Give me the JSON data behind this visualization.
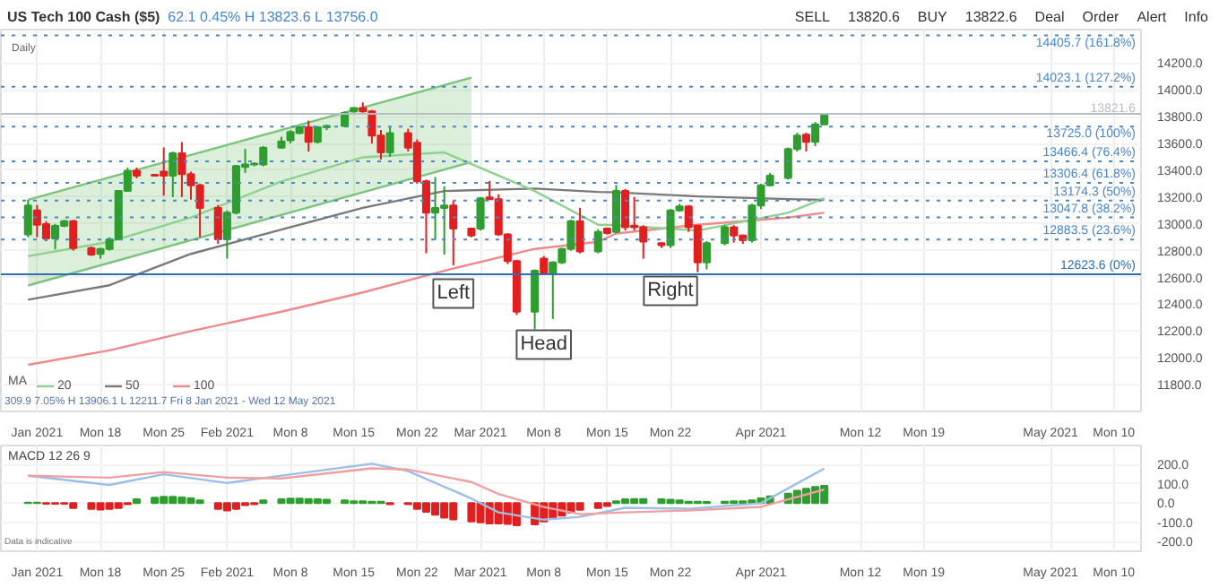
{
  "chart_data": [
    {
      "type": "candlestick",
      "title": "US Tech 100 Cash ($5)",
      "subtitle": "62.1 0.45% H 13823.6 L 13756.0",
      "x": [
        "2021-01-10",
        "2021-01-11",
        "2021-01-12",
        "2021-01-13",
        "2021-01-14",
        "2021-01-15",
        "2021-01-17",
        "2021-01-18",
        "2021-01-19",
        "2021-01-20",
        "2021-01-21",
        "2021-01-22",
        "2021-01-24",
        "2021-01-25",
        "2021-01-26",
        "2021-01-27",
        "2021-01-28",
        "2021-01-29",
        "2021-01-31",
        "2021-02-01",
        "2021-02-02",
        "2021-02-03",
        "2021-02-04",
        "2021-02-05",
        "2021-02-07",
        "2021-02-08",
        "2021-02-09",
        "2021-02-10",
        "2021-02-11",
        "2021-02-12",
        "2021-02-14",
        "2021-02-15",
        "2021-02-16",
        "2021-02-17",
        "2021-02-18",
        "2021-02-19",
        "2021-02-21",
        "2021-02-22",
        "2021-02-23",
        "2021-02-24",
        "2021-02-25",
        "2021-02-26",
        "2021-02-28",
        "2021-03-01",
        "2021-03-02",
        "2021-03-03",
        "2021-03-04",
        "2021-03-05",
        "2021-03-07",
        "2021-03-08",
        "2021-03-09",
        "2021-03-10",
        "2021-03-11",
        "2021-03-12",
        "2021-03-14",
        "2021-03-15",
        "2021-03-16",
        "2021-03-17",
        "2021-03-18",
        "2021-03-19",
        "2021-03-21",
        "2021-03-22",
        "2021-03-23",
        "2021-03-24",
        "2021-03-25",
        "2021-03-26",
        "2021-03-28",
        "2021-03-29",
        "2021-03-30",
        "2021-03-31",
        "2021-04-01",
        "2021-04-02",
        "2021-04-04",
        "2021-04-05",
        "2021-04-06",
        "2021-04-07",
        "2021-04-08"
      ],
      "ohlc": [
        [
          12921,
          13180,
          12900,
          13137
        ],
        [
          13101,
          13140,
          12900,
          12993
        ],
        [
          12998,
          13020,
          12870,
          12892
        ],
        [
          12892,
          13000,
          12810,
          12985
        ],
        [
          12985,
          13030,
          12975,
          13020
        ],
        [
          13020,
          13030,
          12800,
          12820
        ],
        [
          12820,
          12830,
          12760,
          12770
        ],
        [
          12776,
          12820,
          12740,
          12812
        ],
        [
          12812,
          12900,
          12800,
          12885
        ],
        [
          12885,
          13250,
          12880,
          13245
        ],
        [
          13245,
          13420,
          13240,
          13396
        ],
        [
          13396,
          13420,
          13340,
          13360
        ],
        [
          13367,
          13370,
          13355,
          13360
        ],
        [
          13389,
          13570,
          13210,
          13360
        ],
        [
          13360,
          13540,
          13200,
          13526
        ],
        [
          13526,
          13610,
          13200,
          13371
        ],
        [
          13371,
          13390,
          13180,
          13288
        ],
        [
          13288,
          13300,
          12900,
          13119
        ],
        [
          13119,
          13140,
          12850,
          12885
        ],
        [
          12885,
          13100,
          12740,
          13083
        ],
        [
          13083,
          13440,
          13070,
          13432
        ],
        [
          13425,
          13560,
          13380,
          13443
        ],
        [
          13443,
          13460,
          13430,
          13450
        ],
        [
          13443,
          13580,
          13430,
          13569
        ],
        [
          13569,
          13650,
          13560,
          13616
        ],
        [
          13623,
          13700,
          13600,
          13685
        ],
        [
          13677,
          13730,
          13670,
          13720
        ],
        [
          13720,
          13770,
          13540,
          13612
        ],
        [
          13612,
          13730,
          13600,
          13720
        ],
        [
          13720,
          13740,
          13700,
          13731
        ],
        [
          13731,
          13840,
          13720,
          13828
        ],
        [
          13840,
          13870,
          13830,
          13865
        ],
        [
          13865,
          13906.1,
          13830,
          13840
        ],
        [
          13840,
          13850,
          13600,
          13659
        ],
        [
          13659,
          13700,
          13480,
          13533
        ],
        [
          13533,
          13720,
          13500,
          13677
        ],
        [
          13677,
          13710,
          13540,
          13569
        ],
        [
          13605,
          13630,
          13300,
          13317
        ],
        [
          13317,
          13330,
          12780,
          13083
        ],
        [
          13083,
          13350,
          12880,
          13119
        ],
        [
          13119,
          13280,
          12770,
          13137
        ],
        [
          13137,
          13170,
          12690,
          12964
        ],
        [
          12964,
          12970,
          12900,
          12913
        ],
        [
          12964,
          13200,
          12950,
          13191
        ],
        [
          13198,
          13320,
          13180,
          13184
        ],
        [
          13184,
          13220,
          12910,
          12921
        ],
        [
          12921,
          12930,
          12700,
          12722
        ],
        [
          12722,
          12730,
          12320,
          12344
        ],
        [
          12344,
          12660,
          12211.7,
          12650
        ],
        [
          12740,
          12760,
          12620,
          12632
        ],
        [
          12632,
          12720,
          12290,
          12712
        ],
        [
          12712,
          12820,
          12700,
          12813
        ],
        [
          12813,
          13030,
          12800,
          13020
        ],
        [
          13020,
          13120,
          12780,
          12795
        ],
        [
          12795,
          12960,
          12780,
          12939
        ],
        [
          12964,
          12970,
          12920,
          12932
        ],
        [
          12939,
          13290,
          12930,
          13245
        ],
        [
          13245,
          13260,
          12950,
          12975
        ],
        [
          12986,
          13200,
          12950,
          12975
        ],
        [
          12975,
          12990,
          12740,
          12867
        ],
        [
          12856,
          12860,
          12820,
          12841
        ],
        [
          12841,
          13110,
          12820,
          13101
        ],
        [
          13101,
          13150,
          13090,
          13130
        ],
        [
          13130,
          13140,
          12940,
          12975
        ],
        [
          12986,
          12990,
          12640,
          12712
        ],
        [
          12712,
          12870,
          12660,
          12856
        ],
        [
          12856,
          12990,
          12840,
          12975
        ],
        [
          12975,
          12990,
          12860,
          12913
        ],
        [
          12913,
          12920,
          12850,
          12877
        ],
        [
          12877,
          13150,
          12860,
          13137
        ],
        [
          13137,
          13300,
          13110,
          13288
        ],
        [
          13288,
          13380,
          13280,
          13360
        ],
        [
          13342,
          13570,
          13330,
          13558
        ],
        [
          13558,
          13680,
          13540,
          13659
        ],
        [
          13666,
          13680,
          13540,
          13612
        ],
        [
          13612,
          13760,
          13580,
          13742
        ],
        [
          13742,
          13825,
          13740,
          13821.6
        ]
      ],
      "series": [
        {
          "type": "line",
          "color": "#7cc47c",
          "x": [
            "2021-01-10",
            "2021-02-28"
          ],
          "values": [
            13180,
            14091
          ],
          "lower": [
            12540,
            13461
          ],
          "upper": [
            13180,
            14091
          ]
        },
        {
          "type": "line",
          "color": "#7cc47c",
          "x": [
            "2021-01-10",
            "2021-02-28"
          ],
          "values": [
            12540,
            13461
          ]
        },
        {
          "type": "line",
          "name": "100",
          "color": "#f08a8a",
          "x": [
            "2021-01-10",
            "2021-01-19",
            "2021-01-28",
            "2021-02-07",
            "2021-02-16",
            "2021-02-25",
            "2021-03-07",
            "2021-03-14",
            "2021-03-16",
            "2021-03-25",
            "2021-04-04",
            "2021-04-08"
          ],
          "values": [
            11948,
            12056,
            12200,
            12344,
            12488,
            12650,
            12813,
            12866,
            12928,
            12993,
            13047,
            13083
          ]
        },
        {
          "type": "line",
          "name": "50",
          "color": "#7a7a7a",
          "x": [
            "2021-01-10",
            "2021-01-19",
            "2021-01-28",
            "2021-02-07",
            "2021-02-16",
            "2021-02-25",
            "2021-03-07",
            "2021-03-14",
            "2021-03-16",
            "2021-03-25",
            "2021-04-04",
            "2021-04-08"
          ],
          "values": [
            12434,
            12542,
            12776,
            12957,
            13119,
            13245,
            13263,
            13238,
            13235,
            13205,
            13185,
            13180
          ]
        },
        {
          "type": "line",
          "name": "20",
          "color": "#8fd18f",
          "x": [
            "2021-01-10",
            "2021-01-19",
            "2021-01-28",
            "2021-02-07",
            "2021-02-16",
            "2021-02-25",
            "2021-03-07",
            "2021-03-14",
            "2021-03-16",
            "2021-03-25",
            "2021-04-04",
            "2021-04-08"
          ],
          "values": [
            12758,
            12866,
            13047,
            13317,
            13497,
            13533,
            13245,
            12993,
            12990,
            12950,
            13083,
            13191
          ]
        }
      ],
      "legend": "bottom left",
      "legend_title": "MA",
      "xlim": [
        "2021-01-07",
        "2021-05-13"
      ],
      "ylim": [
        11600,
        14450
      ],
      "xticks": [
        {
          "value": "2021-01-11",
          "label": "Jan 2021"
        },
        {
          "value": "2021-01-18",
          "label": "Mon 18"
        },
        {
          "value": "2021-01-25",
          "label": "Mon 25"
        },
        {
          "value": "2021-02-01",
          "label": "Feb 2021"
        },
        {
          "value": "2021-02-08",
          "label": "Mon 8"
        },
        {
          "value": "2021-02-15",
          "label": "Mon 15"
        },
        {
          "value": "2021-02-22",
          "label": "Mon 22"
        },
        {
          "value": "2021-03-01",
          "label": "Mar 2021"
        },
        {
          "value": "2021-03-08",
          "label": "Mon 8"
        },
        {
          "value": "2021-03-15",
          "label": "Mon 15"
        },
        {
          "value": "2021-03-22",
          "label": "Mon 22"
        },
        {
          "value": "2021-04-01",
          "label": "Apr 2021"
        },
        {
          "value": "2021-04-12",
          "label": "Mon 12"
        },
        {
          "value": "2021-04-19",
          "label": "Mon 19"
        },
        {
          "value": "2021-05-03",
          "label": "May 2021"
        },
        {
          "value": "2021-05-10",
          "label": "Mon 10"
        }
      ],
      "yticks": [
        {
          "value": 11800,
          "label": "11800.0"
        },
        {
          "value": 12000,
          "label": "12000.0"
        },
        {
          "value": 12200,
          "label": "12200.0"
        },
        {
          "value": 12400,
          "label": "12400.0"
        },
        {
          "value": 12600,
          "label": "12600.0"
        },
        {
          "value": 12800,
          "label": "12800.0"
        },
        {
          "value": 13000,
          "label": "13000.0"
        },
        {
          "value": 13200,
          "label": "13200.0"
        },
        {
          "value": 13400,
          "label": "13400.0"
        },
        {
          "value": 13600,
          "label": "13600.0"
        },
        {
          "value": 13800,
          "label": "13800.0"
        },
        {
          "value": 14000,
          "label": "14000.0"
        },
        {
          "value": 14200,
          "label": "14200.0"
        }
      ],
      "grid": true,
      "ref_lines": [
        {
          "axis": "y",
          "value": 13821.6,
          "label": "13821.6",
          "color": "#b8bcc4",
          "line_style": "solid"
        },
        {
          "axis": "y",
          "value": 14405.7,
          "label": "14405.7 (161.8%)",
          "color": "#4a86c8",
          "line_style": "dotted"
        },
        {
          "axis": "y",
          "value": 14023.1,
          "label": "14023.1 (127.2%)",
          "color": "#4a86c8",
          "line_style": "dotted"
        },
        {
          "axis": "y",
          "value": 13725.0,
          "label": "13725.0 (100%)",
          "color": "#4a86c8",
          "line_style": "dotted"
        },
        {
          "axis": "y",
          "value": 13466.4,
          "label": "13466.4 (76.4%)",
          "color": "#4a86c8",
          "line_style": "dotted"
        },
        {
          "axis": "y",
          "value": 13306.4,
          "label": "13306.4 (61.8%)",
          "color": "#4a86c8",
          "line_style": "dotted"
        },
        {
          "axis": "y",
          "value": 13174.3,
          "label": "13174.3 (50%)",
          "color": "#4a86c8",
          "line_style": "dotted"
        },
        {
          "axis": "y",
          "value": 13047.8,
          "label": "13047.8 (38.2%)",
          "color": "#4a86c8",
          "line_style": "dotted"
        },
        {
          "axis": "y",
          "value": 12883.5,
          "label": "12883.5 (23.6%)",
          "color": "#4a86c8",
          "line_style": "dotted"
        },
        {
          "axis": "y",
          "value": 12623.6,
          "label": "12623.6 (0%)",
          "color": "#2f6db5",
          "line_style": "solid"
        }
      ],
      "annotations": [
        "Daily",
        "SELL",
        "13820.6",
        "BUY",
        "13822.6",
        "Deal",
        "Order",
        "Alert",
        "Info",
        "309.9 7.05% H 13906.1 L 12211.7 Fri 8 Jan 2021 - Wed 12 May 2021",
        {
          "text": "Left",
          "x": "2021-02-26",
          "y": 12480
        },
        {
          "text": "Head",
          "x": "2021-03-08",
          "y": 12099
        },
        {
          "text": "Right",
          "x": "2021-03-22",
          "y": 12500
        }
      ]
    },
    {
      "type": "bar",
      "title": "MACD 12 26 9",
      "x": [
        "2021-01-10",
        "2021-01-11",
        "2021-01-12",
        "2021-01-13",
        "2021-01-14",
        "2021-01-15",
        "2021-01-17",
        "2021-01-18",
        "2021-01-19",
        "2021-01-20",
        "2021-01-21",
        "2021-01-22",
        "2021-01-24",
        "2021-01-25",
        "2021-01-26",
        "2021-01-27",
        "2021-01-28",
        "2021-01-29",
        "2021-01-31",
        "2021-02-01",
        "2021-02-02",
        "2021-02-03",
        "2021-02-04",
        "2021-02-05",
        "2021-02-07",
        "2021-02-08",
        "2021-02-09",
        "2021-02-10",
        "2021-02-11",
        "2021-02-12",
        "2021-02-14",
        "2021-02-15",
        "2021-02-16",
        "2021-02-17",
        "2021-02-18",
        "2021-02-19",
        "2021-02-21",
        "2021-02-22",
        "2021-02-23",
        "2021-02-24",
        "2021-02-25",
        "2021-02-26",
        "2021-02-28",
        "2021-03-01",
        "2021-03-02",
        "2021-03-03",
        "2021-03-04",
        "2021-03-05",
        "2021-03-07",
        "2021-03-08",
        "2021-03-09",
        "2021-03-10",
        "2021-03-11",
        "2021-03-12",
        "2021-03-14",
        "2021-03-15",
        "2021-03-16",
        "2021-03-17",
        "2021-03-18",
        "2021-03-19",
        "2021-03-21",
        "2021-03-22",
        "2021-03-23",
        "2021-03-24",
        "2021-03-25",
        "2021-03-26",
        "2021-03-28",
        "2021-03-29",
        "2021-03-30",
        "2021-03-31",
        "2021-04-01",
        "2021-04-02",
        "2021-04-04",
        "2021-04-05",
        "2021-04-06",
        "2021-04-07",
        "2021-04-08"
      ],
      "series": [
        {
          "colors": [
            "#2e9e2e",
            "#2e9e2e",
            "#e02020",
            "#e02020",
            "#e02020",
            "#e02020",
            "#e02020",
            "#e02020",
            "#e02020",
            "#e02020",
            "#e02020",
            "#2e9e2e",
            "#2e9e2e",
            "#2e9e2e",
            "#2e9e2e",
            "#2e9e2e",
            "#2e9e2e",
            "#2e9e2e",
            "#e02020",
            "#e02020",
            "#e02020",
            "#e02020",
            "#e02020",
            "#2e9e2e",
            "#2e9e2e",
            "#2e9e2e",
            "#2e9e2e",
            "#2e9e2e",
            "#2e9e2e",
            "#2e9e2e",
            "#2e9e2e",
            "#2e9e2e",
            "#2e9e2e",
            "#2e9e2e",
            "#2e9e2e",
            "#e02020",
            "#e02020",
            "#e02020",
            "#e02020",
            "#e02020",
            "#e02020",
            "#e02020",
            "#e02020",
            "#e02020",
            "#e02020",
            "#e02020",
            "#e02020",
            "#e02020",
            "#e02020",
            "#e02020",
            "#e02020",
            "#e02020",
            "#e02020",
            "#e02020",
            "#e02020",
            "#e02020",
            "#2e9e2e",
            "#2e9e2e",
            "#2e9e2e",
            "#2e9e2e",
            "#2e9e2e",
            "#2e9e2e",
            "#2e9e2e",
            "#2e9e2e",
            "#2e9e2e",
            "#2e9e2e",
            "#2e9e2e",
            "#2e9e2e",
            "#2e9e2e",
            "#2e9e2e",
            "#2e9e2e",
            "#2e9e2e",
            "#2e9e2e",
            "#2e9e2e",
            "#2e9e2e",
            "#2e9e2e",
            "#2e9e2e"
          ],
          "values": [
            3,
            3,
            -3,
            -3,
            -3,
            -25,
            -30,
            -33,
            -30,
            -25,
            -5,
            20,
            28,
            33,
            33,
            30,
            25,
            15,
            -30,
            -38,
            -30,
            -10,
            -5,
            15,
            20,
            24,
            24,
            22,
            20,
            18,
            15,
            10,
            10,
            8,
            8,
            -5,
            -5,
            -30,
            -45,
            -60,
            -75,
            -85,
            -95,
            -100,
            -105,
            -105,
            -108,
            -115,
            -110,
            -95,
            -80,
            -65,
            -50,
            -35,
            -25,
            -15,
            10,
            20,
            22,
            22,
            20,
            18,
            15,
            8,
            8,
            6,
            8,
            10,
            10,
            15,
            25,
            35,
            50,
            65,
            75,
            85,
            90
          ]
        },
        {
          "type": "line",
          "color": "#9bbfe8",
          "x": [
            "2021-01-10",
            "2021-01-19",
            "2021-01-25",
            "2021-02-01",
            "2021-02-07",
            "2021-02-17",
            "2021-02-21",
            "2021-02-28",
            "2021-03-03",
            "2021-03-08",
            "2021-03-12",
            "2021-03-17",
            "2021-03-24",
            "2021-04-01",
            "2021-04-08"
          ],
          "values": [
            143,
            95,
            150,
            105,
            143,
            205,
            167,
            24,
            -48,
            -86,
            -71,
            -24,
            -29,
            0,
            180
          ]
        },
        {
          "type": "line",
          "color": "#f0a0a0",
          "x": [
            "2021-01-10",
            "2021-01-19",
            "2021-01-25",
            "2021-02-01",
            "2021-02-07",
            "2021-02-17",
            "2021-02-21",
            "2021-02-28",
            "2021-03-03",
            "2021-03-08",
            "2021-03-12",
            "2021-03-17",
            "2021-03-24",
            "2021-04-01",
            "2021-04-08"
          ],
          "values": [
            143,
            133,
            162,
            133,
            129,
            181,
            175,
            110,
            48,
            -20,
            -57,
            -48,
            -38,
            -19,
            71
          ]
        }
      ],
      "xlim": [
        "2021-01-07",
        "2021-05-13"
      ],
      "ylim": [
        -250,
        300
      ],
      "xticks": [
        {
          "value": "2021-01-11",
          "label": "Jan 2021"
        },
        {
          "value": "2021-01-18",
          "label": "Mon 18"
        },
        {
          "value": "2021-01-25",
          "label": "Mon 25"
        },
        {
          "value": "2021-02-01",
          "label": "Feb 2021"
        },
        {
          "value": "2021-02-08",
          "label": "Mon 8"
        },
        {
          "value": "2021-02-15",
          "label": "Mon 15"
        },
        {
          "value": "2021-02-22",
          "label": "Mon 22"
        },
        {
          "value": "2021-03-01",
          "label": "Mar 2021"
        },
        {
          "value": "2021-03-08",
          "label": "Mon 8"
        },
        {
          "value": "2021-03-15",
          "label": "Mon 15"
        },
        {
          "value": "2021-03-22",
          "label": "Mon 22"
        },
        {
          "value": "2021-04-01",
          "label": "Apr 2021"
        },
        {
          "value": "2021-04-12",
          "label": "Mon 12"
        },
        {
          "value": "2021-04-19",
          "label": "Mon 19"
        },
        {
          "value": "2021-05-03",
          "label": "May 2021"
        },
        {
          "value": "2021-05-10",
          "label": "Mon 10"
        }
      ],
      "yticks": [
        {
          "value": -200,
          "label": "-200.0"
        },
        {
          "value": -100,
          "label": "-100.0"
        },
        {
          "value": 0,
          "label": "0.0"
        },
        {
          "value": 100,
          "label": "100.0"
        },
        {
          "value": 200,
          "label": "200.0"
        }
      ],
      "grid": true,
      "annotations": [
        "Data is indicative"
      ]
    }
  ]
}
